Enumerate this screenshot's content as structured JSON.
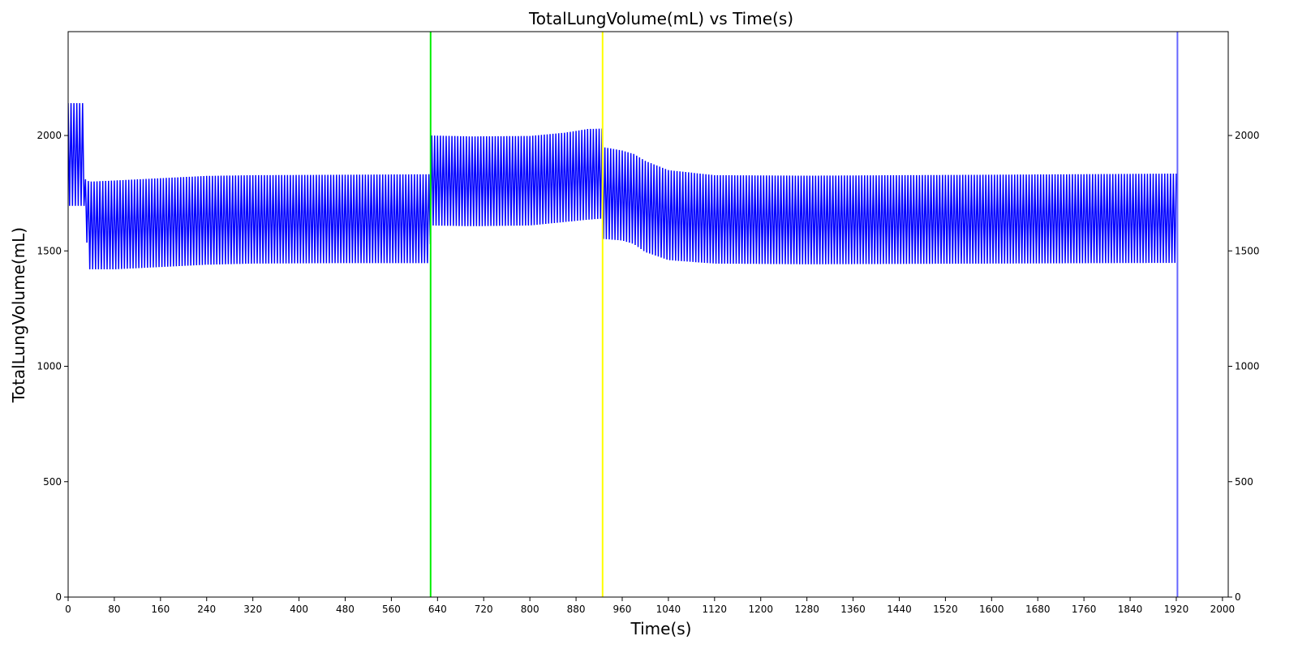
{
  "chart_data": {
    "type": "line",
    "title": "TotalLungVolume(mL) vs Time(s)",
    "xlabel": "Time(s)",
    "ylabel": "TotalLungVolume(mL)",
    "xlim": [
      0,
      2010
    ],
    "ylim": [
      0,
      2450
    ],
    "xticks": [
      0,
      80,
      160,
      240,
      320,
      400,
      480,
      560,
      640,
      720,
      800,
      880,
      960,
      1040,
      1120,
      1200,
      1280,
      1360,
      1440,
      1520,
      1600,
      1680,
      1760,
      1840,
      1920,
      2000
    ],
    "yticks": [
      0,
      500,
      1000,
      1500,
      2000
    ],
    "right_axis_ticks": true,
    "grid": false,
    "series_color": "#0000ff",
    "breathing_period_s": 5,
    "envelope": {
      "upper": [
        [
          0,
          2140
        ],
        [
          28,
          2140
        ],
        [
          30,
          1810
        ],
        [
          37,
          1800
        ],
        [
          80,
          1805
        ],
        [
          160,
          1815
        ],
        [
          240,
          1825
        ],
        [
          320,
          1828
        ],
        [
          480,
          1830
        ],
        [
          627,
          1832
        ],
        [
          628,
          2000
        ],
        [
          700,
          1996
        ],
        [
          800,
          1998
        ],
        [
          860,
          2012
        ],
        [
          900,
          2028
        ],
        [
          925,
          2030
        ],
        [
          926,
          1950
        ],
        [
          960,
          1935
        ],
        [
          980,
          1920
        ],
        [
          1000,
          1890
        ],
        [
          1040,
          1850
        ],
        [
          1120,
          1828
        ],
        [
          1280,
          1826
        ],
        [
          1600,
          1830
        ],
        [
          1800,
          1833
        ],
        [
          1922,
          1835
        ]
      ],
      "lower": [
        [
          0,
          1695
        ],
        [
          28,
          1695
        ],
        [
          30,
          1600
        ],
        [
          37,
          1420
        ],
        [
          80,
          1420
        ],
        [
          160,
          1430
        ],
        [
          240,
          1440
        ],
        [
          320,
          1445
        ],
        [
          480,
          1447
        ],
        [
          627,
          1447
        ],
        [
          628,
          1610
        ],
        [
          700,
          1607
        ],
        [
          800,
          1610
        ],
        [
          860,
          1625
        ],
        [
          900,
          1635
        ],
        [
          925,
          1640
        ],
        [
          926,
          1552
        ],
        [
          960,
          1545
        ],
        [
          980,
          1530
        ],
        [
          1000,
          1495
        ],
        [
          1040,
          1460
        ],
        [
          1120,
          1445
        ],
        [
          1280,
          1442
        ],
        [
          1600,
          1445
        ],
        [
          1800,
          1447
        ],
        [
          1922,
          1448
        ]
      ]
    },
    "event_lines": [
      {
        "x": 628,
        "color": "#00ee00"
      },
      {
        "x": 926,
        "color": "#ffff00"
      },
      {
        "x": 1922,
        "color": "#6666ff"
      }
    ]
  }
}
